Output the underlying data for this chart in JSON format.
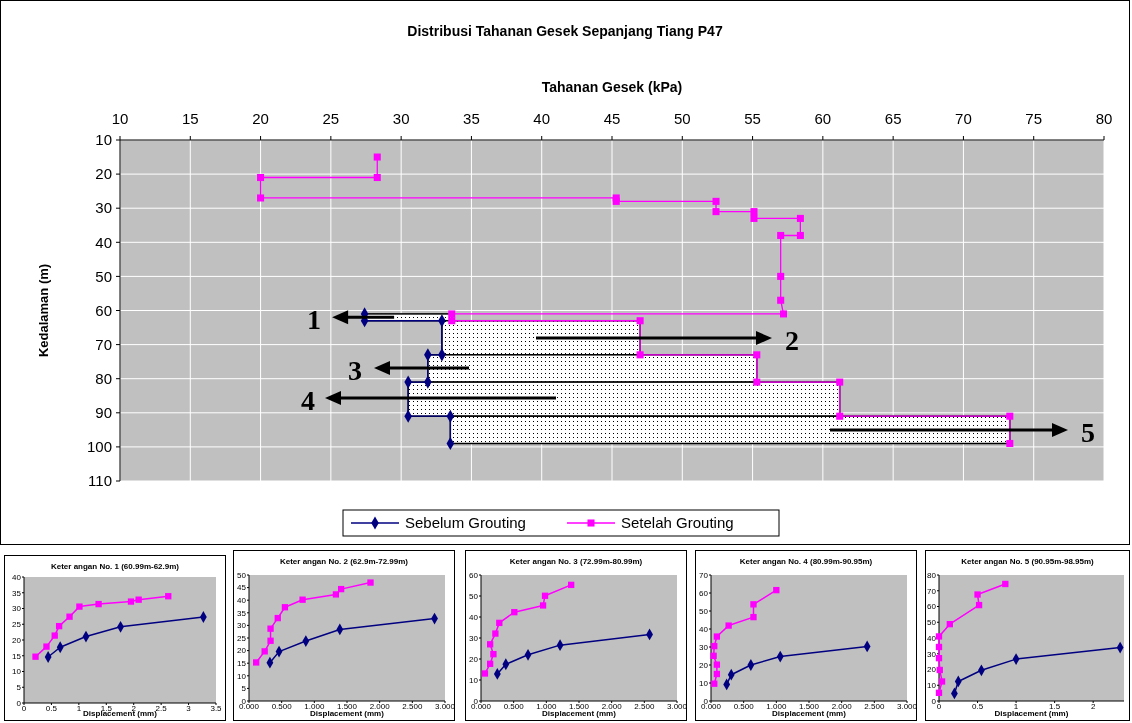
{
  "chart_data": [
    {
      "type": "line",
      "title": "Distribusi Tahanan Gesek Sepanjang Tiang P47",
      "xlabel": "Tahanan Gesek (kPa)",
      "ylabel": "Kedalaman (m)",
      "xlim": [
        10,
        80
      ],
      "xticks": [
        10,
        15,
        20,
        25,
        30,
        35,
        40,
        45,
        50,
        55,
        60,
        65,
        70,
        75,
        80
      ],
      "ylim": [
        110,
        10
      ],
      "yticks": [
        10,
        20,
        30,
        40,
        50,
        60,
        70,
        80,
        90,
        100,
        110
      ],
      "grid": true,
      "legend": "bottom",
      "line_style": "solid",
      "series": [
        {
          "name": "Sebelum Grouting",
          "color": "#000080",
          "marker": "diamond",
          "x": [
            27.4,
            27.4,
            32.9,
            32.9,
            31.9,
            31.9,
            30.5,
            30.5,
            33.5,
            33.5
          ],
          "values": [
            61,
            63,
            63,
            73,
            73,
            81,
            81,
            91,
            91,
            99
          ]
        },
        {
          "name": "Setelah Grouting",
          "color": "#ff00ff",
          "marker": "square",
          "x": [
            28.3,
            28.3,
            20,
            20,
            45.3,
            45.3,
            52.4,
            52.4,
            55.1,
            55.1,
            58.4,
            58.4,
            57,
            57,
            57,
            57.2,
            33.6,
            33.6,
            47,
            47,
            55.3,
            55.3,
            61.2,
            61.2,
            73.3,
            73.3
          ],
          "values": [
            15,
            21,
            21,
            27,
            27,
            28,
            28,
            31,
            31,
            33,
            33,
            38,
            38,
            50,
            57,
            61,
            61,
            63,
            63,
            73,
            73,
            81,
            81,
            91,
            91,
            99
          ]
        }
      ],
      "annotations": [
        {
          "text": "1",
          "x": 29.5,
          "y": 62
        },
        "2",
        "3",
        "4",
        "5"
      ]
    },
    {
      "type": "line",
      "title": "Keter angan No. 1 (60.99m-62.9m)",
      "xlabel": "Displacement (mm)",
      "xlim": [
        0,
        3.5
      ],
      "xticks": [
        0,
        0.5,
        1,
        1.5,
        2,
        2.5,
        3,
        3.5
      ],
      "ylim": [
        0,
        40
      ],
      "yticks": [
        0,
        5,
        10,
        15,
        20,
        25,
        30,
        35,
        40
      ],
      "line_style": "solid",
      "series": [
        {
          "color": "#000080",
          "marker": "diamond",
          "x": [
            0.44,
            0.66,
            1.13,
            1.76,
            3.27
          ],
          "values": [
            14.6,
            17.7,
            21.1,
            24.2,
            27.3
          ]
        },
        {
          "color": "#ff00ff",
          "marker": "square",
          "x": [
            0.21,
            0.41,
            0.56,
            0.64,
            0.83,
            1.01,
            1.36,
            1.95,
            2.09,
            2.63
          ],
          "values": [
            14.7,
            17.9,
            21.4,
            24.4,
            27.4,
            30.6,
            31.4,
            32.2,
            32.8,
            33.9
          ]
        }
      ]
    },
    {
      "type": "line",
      "title": "Keter angan No. 2 (62.9m-72.99m)",
      "xlabel": "Displacement (mm)",
      "xlim": [
        0,
        3
      ],
      "xticks": [
        {
          "value": 0,
          "label": "0.000"
        },
        {
          "value": 0.5,
          "label": "0.500"
        },
        {
          "value": 1,
          "label": "1.000"
        },
        {
          "value": 1.5,
          "label": "1.500"
        },
        {
          "value": 2,
          "label": "2.000"
        },
        {
          "value": 2.5,
          "label": "2.500"
        },
        {
          "value": 3,
          "label": "3.000"
        }
      ],
      "ylim": [
        0,
        50
      ],
      "yticks": [
        0,
        5,
        10,
        15,
        20,
        25,
        30,
        35,
        40,
        45,
        50
      ],
      "line_style": "solid",
      "series": [
        {
          "color": "#000080",
          "marker": "diamond",
          "x": [
            0.32,
            0.46,
            0.87,
            1.39,
            2.84
          ],
          "values": [
            15.2,
            19.6,
            23.8,
            28.4,
            32.7
          ]
        },
        {
          "color": "#ff00ff",
          "marker": "square",
          "x": [
            0.11,
            0.24,
            0.33,
            0.33,
            0.44,
            0.55,
            0.82,
            1.33,
            1.41,
            1.86
          ],
          "values": [
            15.3,
            19.7,
            23.9,
            28.7,
            32.9,
            37.2,
            40.2,
            42.3,
            44.4,
            47
          ]
        }
      ]
    },
    {
      "type": "line",
      "title": "Keter angan No. 3 (72.99m-80.99m)",
      "xlabel": "Displacement (mm)",
      "xlim": [
        0,
        3
      ],
      "xticks": [
        {
          "value": 0,
          "label": "0.000"
        },
        {
          "value": 0.5,
          "label": "0.500"
        },
        {
          "value": 1,
          "label": "1.000"
        },
        {
          "value": 1.5,
          "label": "1.500"
        },
        {
          "value": 2,
          "label": "2.000"
        },
        {
          "value": 2.5,
          "label": "2.500"
        },
        {
          "value": 3,
          "label": "3.000"
        }
      ],
      "ylim": [
        0,
        60
      ],
      "yticks": [
        0,
        10,
        20,
        30,
        40,
        50,
        60
      ],
      "line_style": "solid",
      "series": [
        {
          "color": "#000080",
          "marker": "diamond",
          "x": [
            0.25,
            0.38,
            0.72,
            1.21,
            2.58
          ],
          "values": [
            12.9,
            17.5,
            22,
            26.6,
            31.7
          ]
        },
        {
          "color": "#ff00ff",
          "marker": "square",
          "x": [
            0.06,
            0.14,
            0.19,
            0.14,
            0.22,
            0.28,
            0.51,
            0.95,
            0.98,
            1.38
          ],
          "values": [
            13.1,
            17.7,
            22.3,
            27,
            32.1,
            37.2,
            42.3,
            45.5,
            50.1,
            55.3
          ]
        }
      ]
    },
    {
      "type": "line",
      "title": "Keter angan No. 4 (80.99m-90.95m)",
      "xlabel": "Displacement (mm)",
      "xlim": [
        0,
        3
      ],
      "xticks": [
        {
          "value": 0,
          "label": "0.000"
        },
        {
          "value": 0.5,
          "label": "0.500"
        },
        {
          "value": 1,
          "label": "1.000"
        },
        {
          "value": 1.5,
          "label": "1.500"
        },
        {
          "value": 2,
          "label": "2.000"
        },
        {
          "value": 2.5,
          "label": "2.500"
        },
        {
          "value": 3,
          "label": "3.000"
        }
      ],
      "ylim": [
        0,
        70
      ],
      "yticks": [
        0,
        10,
        20,
        30,
        40,
        50,
        60,
        70
      ],
      "line_style": "solid",
      "series": [
        {
          "color": "#000080",
          "marker": "diamond",
          "x": [
            0.24,
            0.31,
            0.61,
            1.06,
            2.39
          ],
          "values": [
            9.2,
            14.6,
            20,
            24.7,
            30.3
          ]
        },
        {
          "color": "#ff00ff",
          "marker": "square",
          "x": [
            0.05,
            0.09,
            0.09,
            0.04,
            0.05,
            0.09,
            0.27,
            0.65,
            0.65,
            1
          ],
          "values": [
            9.6,
            15,
            20.2,
            25.1,
            30.5,
            35.8,
            41.9,
            46.6,
            53.7,
            61.6
          ]
        }
      ]
    },
    {
      "type": "line",
      "title": "Keter angan No. 5 (90.95m-98.95m)",
      "xlabel": "Displacement (mm)",
      "xlim": [
        0,
        2.4
      ],
      "xticks": [
        0,
        0.5,
        1,
        1.5,
        2
      ],
      "ylim": [
        0,
        80
      ],
      "yticks": [
        0,
        10,
        20,
        30,
        40,
        50,
        60,
        70,
        80
      ],
      "line_style": "solid",
      "series": [
        {
          "color": "#000080",
          "marker": "diamond",
          "x": [
            0.2,
            0.25,
            0.55,
            1,
            2.35
          ],
          "values": [
            4.8,
            12.4,
            19.5,
            26.6,
            33.9
          ]
        },
        {
          "color": "#ff00ff",
          "marker": "square",
          "x": [
            0,
            0.04,
            0.01,
            0,
            0,
            0,
            0.14,
            0.52,
            0.5,
            0.86
          ],
          "values": [
            5.2,
            12.4,
            19.7,
            27.2,
            34.3,
            41,
            48.8,
            60.9,
            67.6,
            74.3
          ]
        }
      ]
    }
  ]
}
